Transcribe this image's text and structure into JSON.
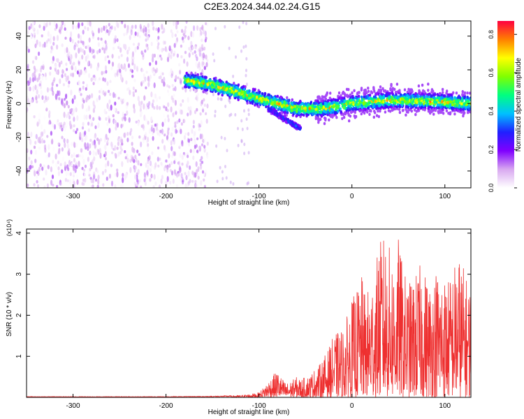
{
  "title": "C2E3.2024.344.02.24.G15",
  "chart_data": [
    {
      "type": "heatmap",
      "xlabel": "Height of straight line (km)",
      "ylabel": "Frequency (Hz)",
      "xlim": [
        -350,
        128
      ],
      "ylim": [
        -50,
        49
      ],
      "xticks": [
        -300,
        -200,
        -100,
        0,
        100
      ],
      "xtick_labels": [
        "-300",
        "-200",
        "-100",
        "0",
        "100"
      ],
      "yticks": [
        -40,
        -20,
        0,
        20,
        40
      ],
      "ytick_labels": [
        "-40",
        "-20",
        "0",
        "20",
        "40"
      ],
      "grid": false,
      "colorbar": {
        "label": "Normalized spectral amplitude",
        "range": [
          0,
          0.87
        ],
        "ticks": [
          0.0,
          0.2,
          0.4,
          0.6,
          0.8
        ],
        "tick_labels": [
          "0.0",
          "0.2",
          "0.4",
          "0.6",
          "0.8"
        ],
        "colors": [
          "#ffffff",
          "#d8a8f0",
          "#8000ff",
          "#2020ff",
          "#00c0ff",
          "#00ff80",
          "#80ff00",
          "#ffff00",
          "#ff8000",
          "#ff0040"
        ]
      },
      "regions": [
        {
          "x": [
            -350,
            -155
          ],
          "freq": [
            -50,
            49
          ],
          "amplitude": [
            0.0,
            0.2
          ],
          "note_color": "#7a1ee0"
        },
        {
          "x": [
            -180,
            128
          ],
          "freq_center_at_x": [
            [
              -180,
              14
            ],
            [
              -150,
              11
            ],
            [
              -100,
              3
            ],
            [
              -60,
              -3
            ],
            [
              -30,
              -3
            ],
            [
              0,
              0
            ],
            [
              40,
              2
            ],
            [
              100,
              1
            ],
            [
              128,
              0
            ]
          ],
          "amplitude": [
            0.15,
            0.8
          ]
        },
        {
          "x": [
            -90,
            -55
          ],
          "freq_center_at_x": [
            [
              -90,
              -3
            ],
            [
              -55,
              -15
            ]
          ],
          "amplitude": [
            0.15,
            0.35
          ]
        }
      ]
    },
    {
      "type": "line",
      "xlabel": "Height of straight line (km)",
      "ylabel": "SNR (10 * v/v)",
      "y_multiplier": "(x10⁴)",
      "xlim": [
        -350,
        128
      ],
      "ylim": [
        0,
        4.1
      ],
      "xticks": [
        -300,
        -200,
        -100,
        0,
        100
      ],
      "xtick_labels": [
        "-300",
        "-200",
        "-100",
        "0",
        "100"
      ],
      "yticks": [
        1,
        2,
        3,
        4
      ],
      "ytick_labels": [
        "1",
        "2",
        "3",
        "4"
      ],
      "grid": false,
      "series": [
        {
          "color": "#ee3030",
          "x": [
            -350,
            -300,
            -250,
            -200,
            -150,
            -120,
            -110,
            -100,
            -95,
            -90,
            -85,
            -80,
            -75,
            -70,
            -65,
            -60,
            -55,
            -50,
            -45,
            -40,
            -35,
            -30,
            -25,
            -20,
            -15,
            -10,
            -5,
            0,
            5,
            10,
            15,
            20,
            25,
            30,
            35,
            40,
            45,
            50,
            55,
            60,
            65,
            70,
            75,
            80,
            85,
            90,
            95,
            100,
            105,
            110,
            115,
            120,
            125
          ],
          "y": [
            0.02,
            0.02,
            0.02,
            0.02,
            0.03,
            0.05,
            0.08,
            0.12,
            0.25,
            0.4,
            0.55,
            0.65,
            0.45,
            0.35,
            0.4,
            0.5,
            0.45,
            0.5,
            0.55,
            0.7,
            0.8,
            1.0,
            1.2,
            1.5,
            1.6,
            1.7,
            2.0,
            2.4,
            2.6,
            3.0,
            2.5,
            2.8,
            3.2,
            3.8,
            4.0,
            3.7,
            3.5,
            3.9,
            3.2,
            2.8,
            2.9,
            3.1,
            3.3,
            3.0,
            2.8,
            3.2,
            3.1,
            3.0,
            2.9,
            3.3,
            3.5,
            3.2,
            2.8
          ]
        }
      ]
    }
  ]
}
